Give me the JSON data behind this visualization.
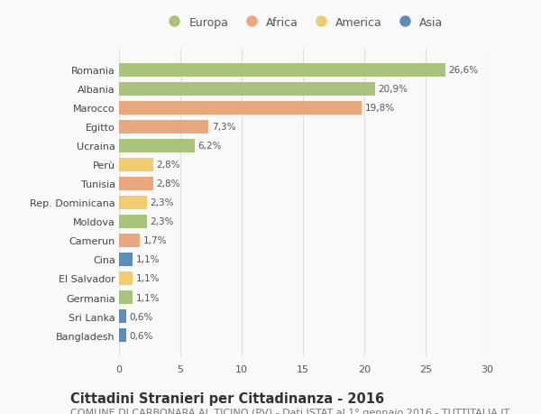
{
  "countries": [
    "Romania",
    "Albania",
    "Marocco",
    "Egitto",
    "Ucraina",
    "Perù",
    "Tunisia",
    "Rep. Dominicana",
    "Moldova",
    "Camerun",
    "Cina",
    "El Salvador",
    "Germania",
    "Sri Lanka",
    "Bangladesh"
  ],
  "values": [
    26.6,
    20.9,
    19.8,
    7.3,
    6.2,
    2.8,
    2.8,
    2.3,
    2.3,
    1.7,
    1.1,
    1.1,
    1.1,
    0.6,
    0.6
  ],
  "labels": [
    "26,6%",
    "20,9%",
    "19,8%",
    "7,3%",
    "6,2%",
    "2,8%",
    "2,8%",
    "2,3%",
    "2,3%",
    "1,7%",
    "1,1%",
    "1,1%",
    "1,1%",
    "0,6%",
    "0,6%"
  ],
  "continents": [
    "Europa",
    "Europa",
    "Africa",
    "Africa",
    "Europa",
    "America",
    "Africa",
    "America",
    "Europa",
    "Africa",
    "Asia",
    "America",
    "Europa",
    "Asia",
    "Asia"
  ],
  "continent_colors": {
    "Europa": "#a8c47a",
    "Africa": "#e8a87c",
    "America": "#f0cc6e",
    "Asia": "#5b8db8"
  },
  "legend_order": [
    "Europa",
    "Africa",
    "America",
    "Asia"
  ],
  "xlim": [
    0,
    30
  ],
  "xticks": [
    0,
    5,
    10,
    15,
    20,
    25,
    30
  ],
  "title": "Cittadini Stranieri per Cittadinanza - 2016",
  "subtitle": "COMUNE DI CARBONARA AL TICINO (PV) - Dati ISTAT al 1° gennaio 2016 - TUTTITALIA.IT",
  "background_color": "#f9f9f9",
  "grid_color": "#e0e0e0",
  "bar_height": 0.72,
  "title_fontsize": 10.5,
  "subtitle_fontsize": 8,
  "label_fontsize": 7.5,
  "tick_fontsize": 8,
  "legend_fontsize": 9
}
